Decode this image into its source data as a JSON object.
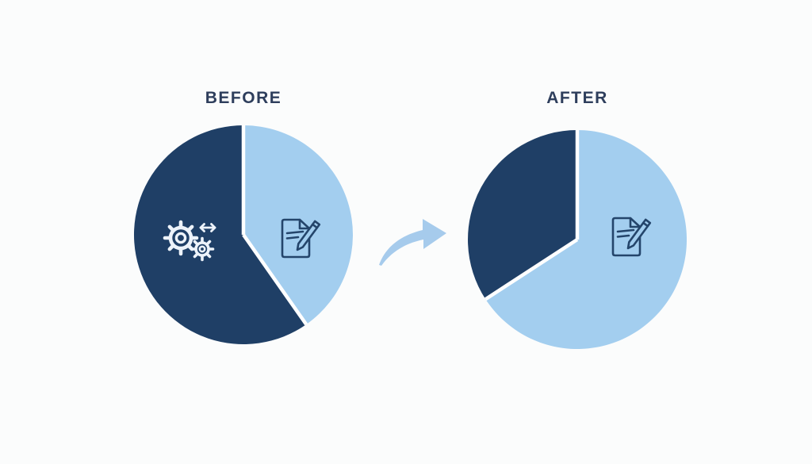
{
  "page": {
    "background_color": "#fbfcfc"
  },
  "panels": {
    "before": {
      "title": "BEFORE"
    },
    "after": {
      "title": "AFTER"
    }
  },
  "colors": {
    "dark_slice": "#1f3f66",
    "light_slice": "#a3ceef",
    "divider": "#ffffff",
    "title_text": "#2e3e5c",
    "arrow": "#a6cbec",
    "icon_on_dark": "#edf3fa",
    "icon_on_light": "#24456b"
  },
  "icons": {
    "before_dark_slice": "gears-sync-arrow-icon",
    "before_light_slice": "document-pencil-icon",
    "after_light_slice": "document-pencil-icon",
    "between_pies": "curved-right-arrow-icon"
  },
  "chart_data": [
    {
      "type": "pie",
      "title": "BEFORE",
      "legend": "none",
      "slices": [
        {
          "name": "document-segment",
          "icon": "document-pencil-icon",
          "value_pct": 40,
          "start_angle_deg": 0,
          "end_angle_deg": 145,
          "color": "#a3ceef"
        },
        {
          "name": "gears-segment",
          "icon": "gears-sync-arrow-icon",
          "value_pct": 60,
          "start_angle_deg": 145,
          "end_angle_deg": 360,
          "color": "#1f3f66"
        }
      ]
    },
    {
      "type": "pie",
      "title": "AFTER",
      "legend": "none",
      "slices": [
        {
          "name": "document-segment",
          "icon": "document-pencil-icon",
          "value_pct": 66,
          "start_angle_deg": 0,
          "end_angle_deg": 237,
          "color": "#a3ceef"
        },
        {
          "name": "dark-segment",
          "icon": "none",
          "value_pct": 34,
          "start_angle_deg": 237,
          "end_angle_deg": 360,
          "color": "#1f3f66"
        }
      ]
    }
  ]
}
